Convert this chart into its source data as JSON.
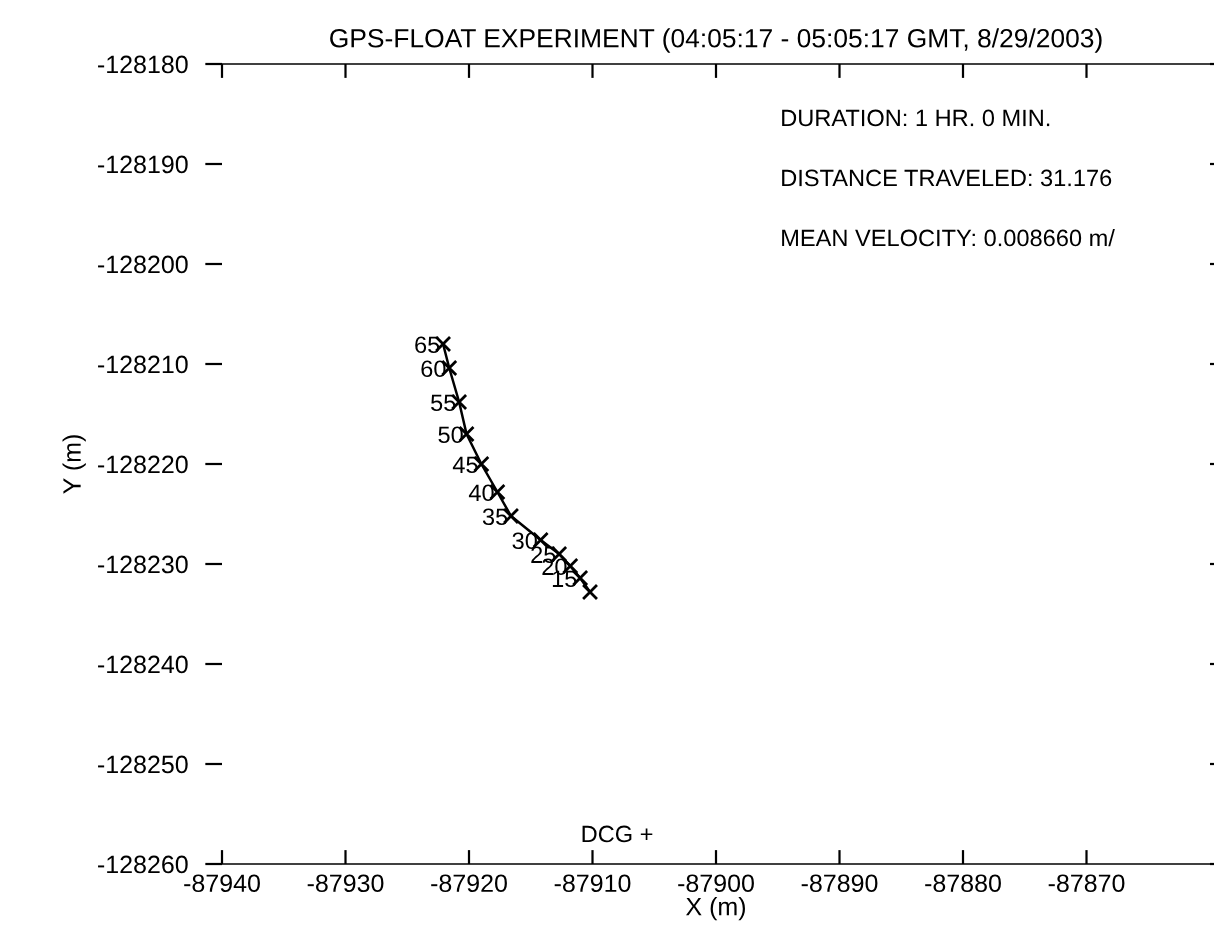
{
  "chart_data": {
    "type": "line",
    "title": "GPS-FLOAT EXPERIMENT (04:05:17 - 05:05:17 GMT, 8/29/2003)",
    "xlabel": "X (m)",
    "ylabel": "Y (m)",
    "series": [
      {
        "color": "#000000",
        "x": [
          -87922.1,
          -87921.6,
          -87920.8,
          -87920.2,
          -87919.0,
          -87917.7,
          -87916.6,
          -87914.2,
          -87912.7,
          -87911.8,
          -87911.0,
          -87910.2
        ],
        "values": [
          -128208.0,
          -128210.4,
          -128213.8,
          -128217.0,
          -128220.0,
          -128222.8,
          -128225.2,
          -128227.6,
          -128229.0,
          -128230.2,
          -128231.4,
          -128232.8
        ]
      }
    ],
    "marker": "cross",
    "line_style": "solid",
    "grid": false,
    "legend": false,
    "xlim": [
      -87940,
      -87860
    ],
    "ylim": [
      -128260,
      -128180
    ],
    "xticks": [
      -87940,
      -87930,
      -87920,
      -87910,
      -87900,
      -87890,
      -87880,
      -87870
    ],
    "yticks": [
      -128260,
      -128250,
      -128240,
      -128230,
      -128220,
      -128210,
      -128200,
      -128190,
      -128180
    ],
    "annotations": [
      "DURATION: 1 HR. 0 MIN.",
      "DISTANCE TRAVELED: 31.176",
      "MEAN VELOCITY: 0.008660 m/",
      {
        "text": "65",
        "x": -87922.1,
        "y": -128208.0
      },
      {
        "text": "60",
        "x": -87921.6,
        "y": -128210.4
      },
      {
        "text": "55",
        "x": -87920.8,
        "y": -128213.8
      },
      {
        "text": "50",
        "x": -87920.2,
        "y": -128217.0
      },
      {
        "text": "45",
        "x": -87919.0,
        "y": -128220.0
      },
      {
        "text": "40",
        "x": -87917.7,
        "y": -128222.8
      },
      {
        "text": "35",
        "x": -87916.6,
        "y": -128225.2
      },
      {
        "text": "30",
        "x": -87914.2,
        "y": -128227.6
      },
      {
        "text": "25",
        "x": -87912.7,
        "y": -128229.0
      },
      {
        "text": "20",
        "x": -87911.8,
        "y": -128230.2
      },
      {
        "text": "15",
        "x": -87911.0,
        "y": -128231.4
      },
      "DCG +"
    ]
  }
}
